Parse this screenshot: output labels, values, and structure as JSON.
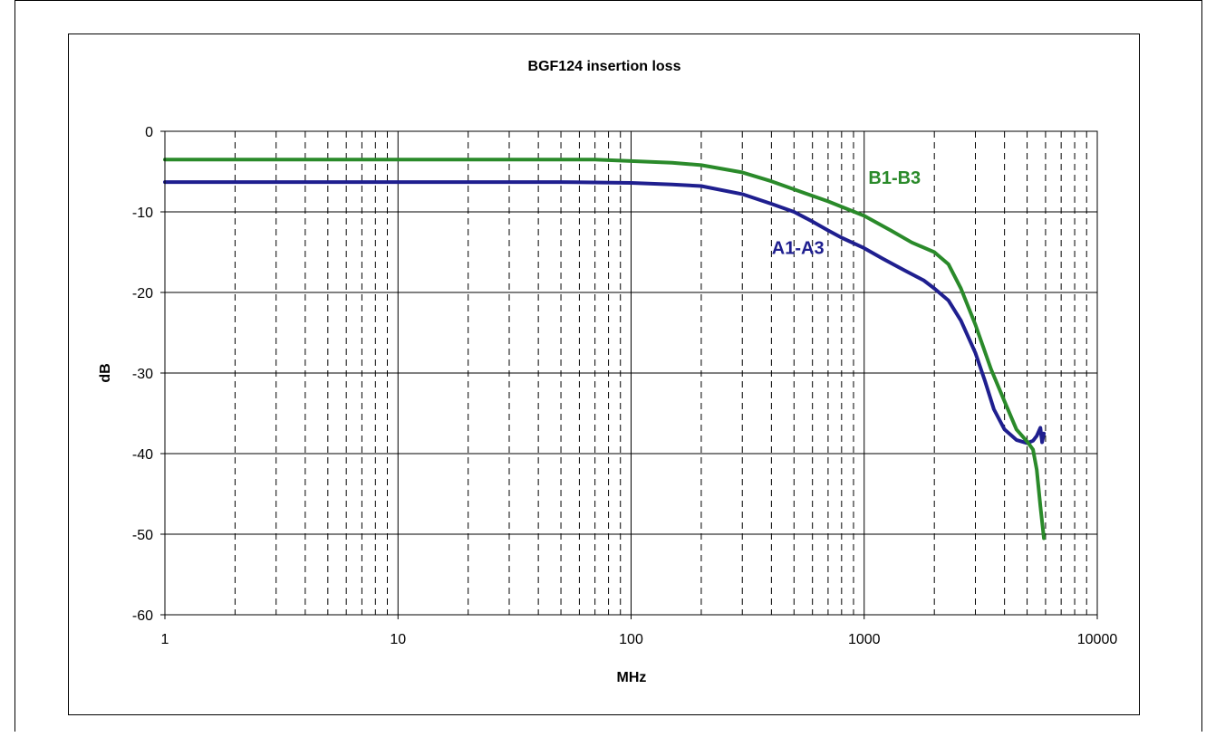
{
  "chart_data": {
    "type": "line",
    "title": "BGF124 insertion loss",
    "xlabel": "MHz",
    "ylabel": "dB",
    "x_scale": "log",
    "xlim": [
      1,
      10000
    ],
    "ylim": [
      -60,
      0
    ],
    "x_ticks": [
      "1",
      "10",
      "100",
      "1000",
      "10000"
    ],
    "y_ticks": [
      "0",
      "-10",
      "-20",
      "-30",
      "-40",
      "-50",
      "-60"
    ],
    "grid": true,
    "colors": {
      "A1-A3": "#1f1f8f",
      "B1-B3": "#2a8a2a"
    },
    "series": [
      {
        "name": "A1-A3",
        "x": [
          1,
          10,
          50,
          100,
          150,
          200,
          300,
          400,
          500,
          600,
          700,
          800,
          1000,
          1200,
          1500,
          1800,
          2000,
          2300,
          2600,
          3000,
          3300,
          3600,
          4000,
          4500,
          5000,
          5300,
          5500,
          5700,
          5800,
          5900
        ],
        "y": [
          -6.3,
          -6.3,
          -6.3,
          -6.4,
          -6.6,
          -6.8,
          -7.8,
          -9.0,
          -10.0,
          -11.2,
          -12.3,
          -13.2,
          -14.5,
          -15.8,
          -17.3,
          -18.5,
          -19.5,
          -21.0,
          -23.5,
          -27.5,
          -31.0,
          -34.5,
          -37.0,
          -38.3,
          -38.7,
          -38.4,
          -37.8,
          -36.8,
          -38.6,
          -37.5
        ]
      },
      {
        "name": "B1-B3",
        "x": [
          1,
          10,
          50,
          70,
          100,
          150,
          200,
          300,
          400,
          500,
          700,
          1000,
          1300,
          1600,
          2000,
          2300,
          2600,
          3000,
          3500,
          4000,
          4500,
          5000,
          5300,
          5500,
          5700,
          5900
        ],
        "y": [
          -3.5,
          -3.5,
          -3.5,
          -3.5,
          -3.7,
          -3.9,
          -4.2,
          -5.1,
          -6.2,
          -7.2,
          -8.7,
          -10.5,
          -12.3,
          -13.8,
          -15.0,
          -16.5,
          -19.5,
          -24.0,
          -29.5,
          -33.5,
          -37.0,
          -38.5,
          -39.5,
          -42.0,
          -46.5,
          -50.5
        ]
      }
    ],
    "annotations": [
      {
        "text": "B1-B3",
        "x": 1350,
        "y": -6.5
      },
      {
        "text": "A1-A3",
        "x": 520,
        "y": -15.2
      }
    ]
  }
}
